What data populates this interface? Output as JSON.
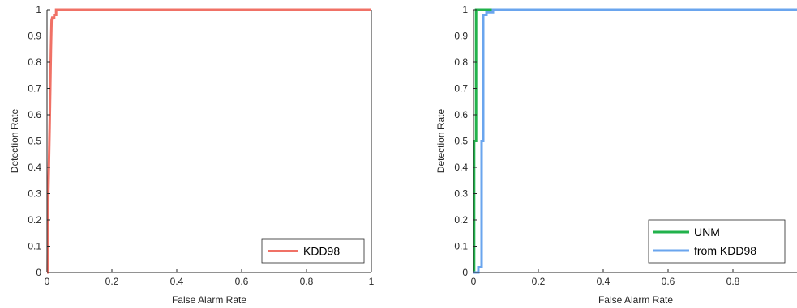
{
  "chart_data": [
    {
      "type": "line",
      "xlabel": "False Alarm Rate",
      "ylabel": "Detection Rate",
      "xlim": [
        0,
        1
      ],
      "ylim": [
        0,
        1
      ],
      "xticks": [
        "0",
        "0.2",
        "0.4",
        "0.6",
        "0.8",
        "1"
      ],
      "yticks": [
        "0",
        "0.1",
        "0.2",
        "0.3",
        "0.4",
        "0.5",
        "0.6",
        "0.7",
        "0.8",
        "0.9",
        "1"
      ],
      "legend_position": "bottom-right",
      "grid": false,
      "series": [
        {
          "name": "KDD98",
          "color": "#f07166",
          "points": [
            [
              0,
              0
            ],
            [
              0.002,
              0
            ],
            [
              0.004,
              0.3
            ],
            [
              0.006,
              0.42
            ],
            [
              0.008,
              0.55
            ],
            [
              0.01,
              0.7
            ],
            [
              0.012,
              0.85
            ],
            [
              0.014,
              0.96
            ],
            [
              0.016,
              0.97
            ],
            [
              0.022,
              0.97
            ],
            [
              0.022,
              0.98
            ],
            [
              0.028,
              0.98
            ],
            [
              0.028,
              1.0
            ],
            [
              1,
              1
            ]
          ]
        }
      ]
    },
    {
      "type": "line",
      "xlabel": "False Alarm Rate",
      "ylabel": "Detection Rate",
      "xlim": [
        0,
        1
      ],
      "ylim": [
        0,
        1
      ],
      "xticks": [
        "0",
        "0.2",
        "0.4",
        "0.6",
        "0.8"
      ],
      "yticks": [
        "0",
        "0.1",
        "0.2",
        "0.3",
        "0.4",
        "0.5",
        "0.6",
        "0.7",
        "0.8",
        "0.9",
        "1"
      ],
      "legend_position": "bottom-right",
      "grid": false,
      "series": [
        {
          "name": "UNM",
          "color": "#21b24b",
          "points": [
            [
              0,
              0
            ],
            [
              0.002,
              0
            ],
            [
              0.002,
              0.5
            ],
            [
              0.008,
              0.5
            ],
            [
              0.008,
              1.0
            ],
            [
              1,
              1
            ]
          ]
        },
        {
          "name": "from KDD98",
          "color": "#6aa5ee",
          "points": [
            [
              0,
              0
            ],
            [
              0.015,
              0
            ],
            [
              0.015,
              0.02
            ],
            [
              0.025,
              0.02
            ],
            [
              0.025,
              0.5
            ],
            [
              0.03,
              0.5
            ],
            [
              0.03,
              0.98
            ],
            [
              0.04,
              0.98
            ],
            [
              0.04,
              0.99
            ],
            [
              0.06,
              0.99
            ],
            [
              0.06,
              1.0
            ],
            [
              1,
              1
            ]
          ]
        }
      ]
    }
  ]
}
